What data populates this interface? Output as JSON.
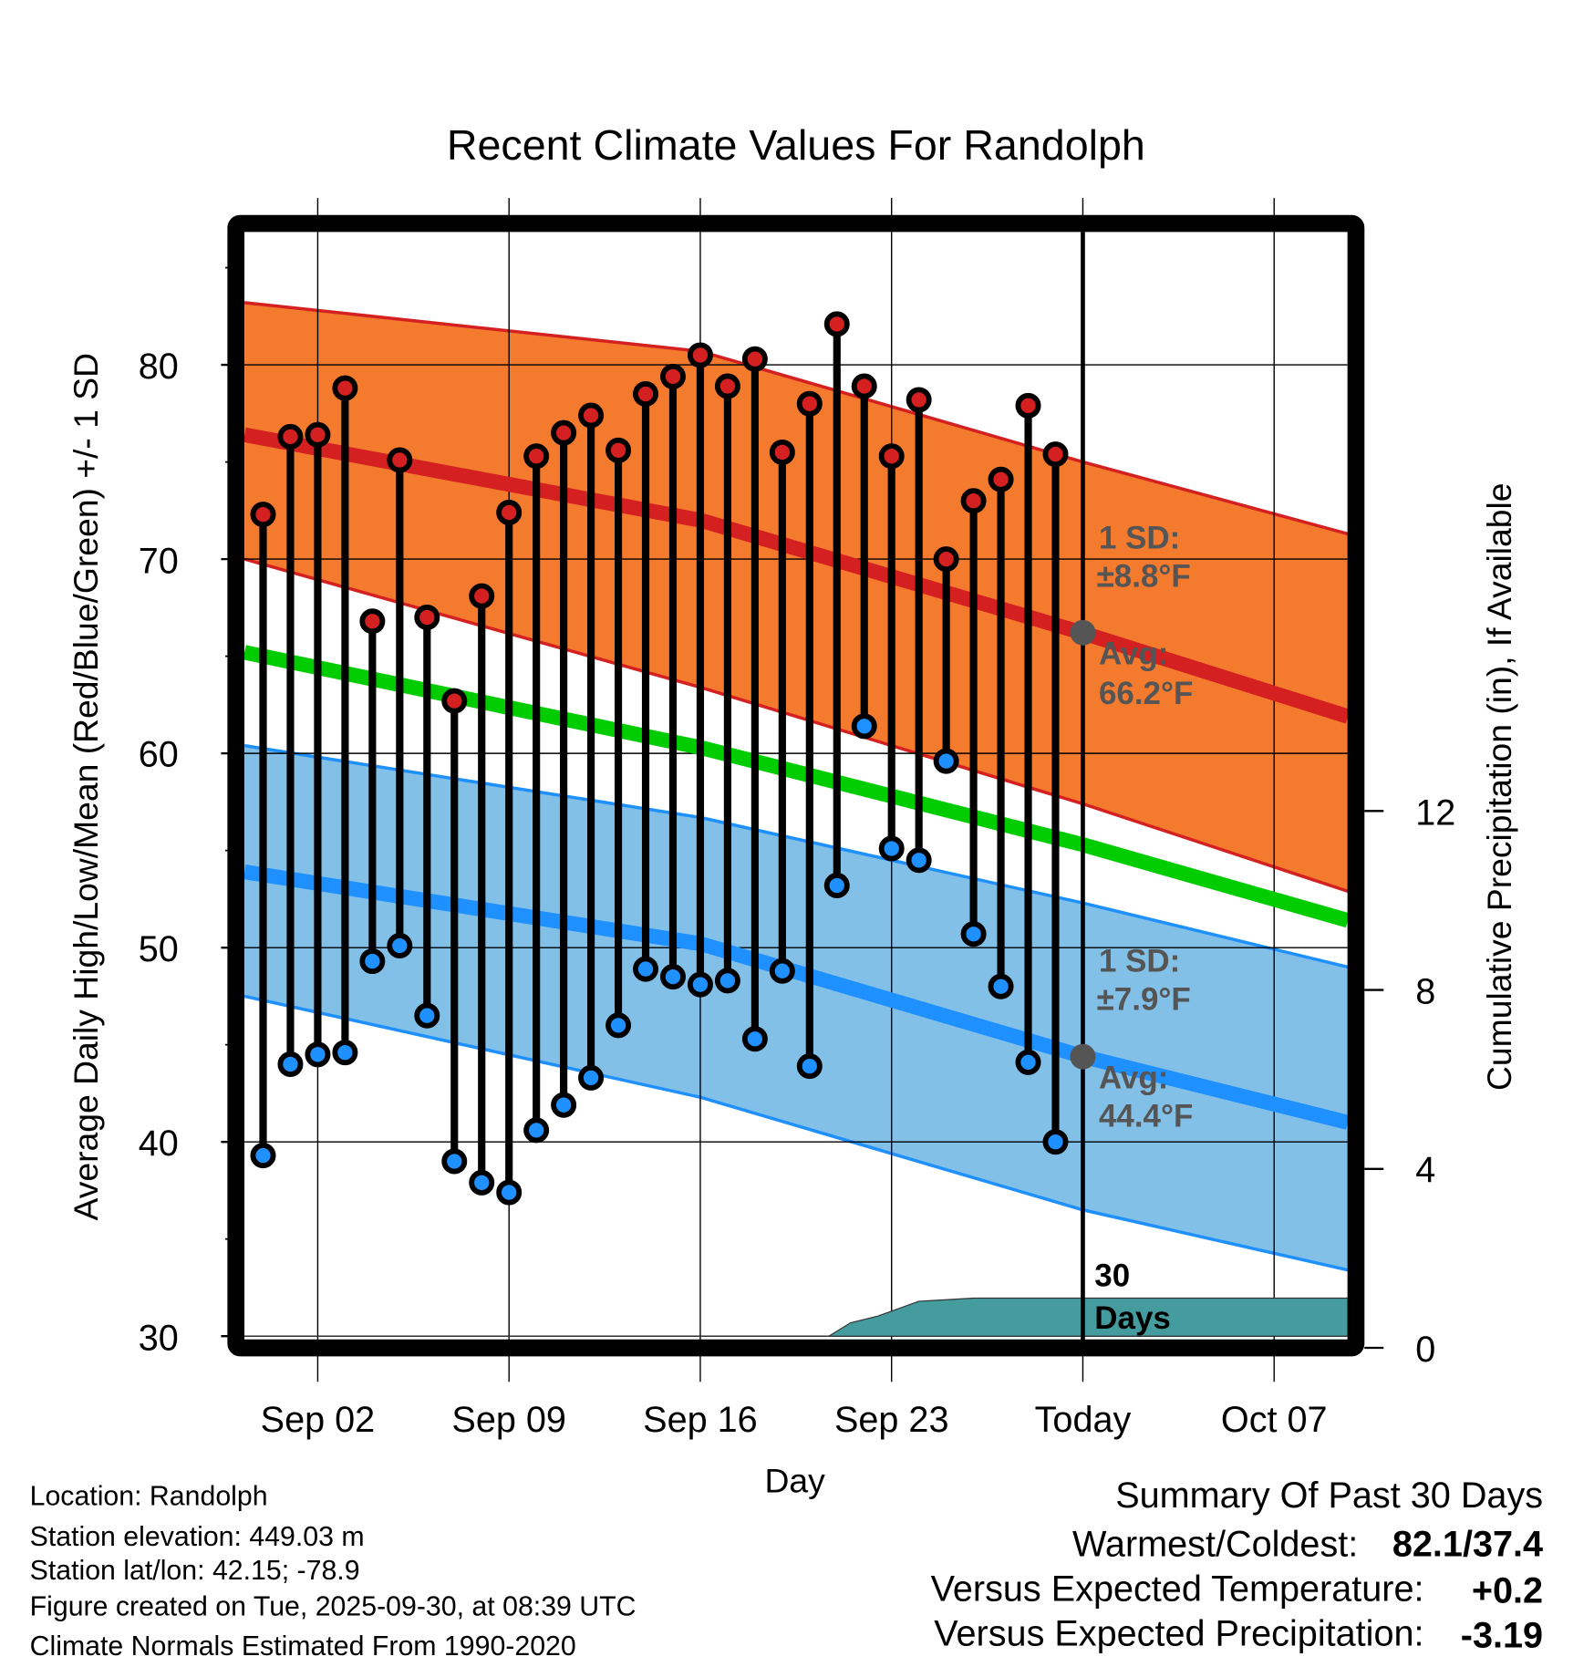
{
  "chart_data": {
    "type": "line",
    "title": "Recent Climate Values For Randolph",
    "xlabel": "Day",
    "ylabel": "Average Daily High/Low/Mean (Red/Blue/Green) +/- 1 SD",
    "y2label": "Cumulative Precipitation (in), If Available",
    "ylim": [
      30,
      87
    ],
    "y2lim": [
      0,
      12
    ],
    "yticks": [
      "30",
      "40",
      "50",
      "60",
      "70",
      "80"
    ],
    "y2ticks": [
      "0",
      "4",
      "8",
      "12"
    ],
    "xticks": [
      "Sep 02",
      "Sep 09",
      "Sep 16",
      "Sep 23",
      "Today",
      "Oct 07"
    ],
    "xtick_days": [
      1,
      8,
      15,
      22,
      29,
      36
    ],
    "grid": true,
    "day_origin": "Sep 01 = day 0",
    "observed_days": [
      -1,
      0,
      1,
      2,
      3,
      4,
      5,
      6,
      7,
      8,
      9,
      10,
      11,
      12,
      13,
      14,
      15,
      16,
      17,
      18,
      19,
      20,
      21,
      22,
      23,
      24,
      25,
      26,
      27,
      28
    ],
    "series": [
      {
        "name": "Daily High",
        "color": "#d42020",
        "values": [
          72.3,
          76.3,
          76.4,
          78.8,
          66.8,
          75.1,
          67.0,
          62.7,
          68.1,
          72.4,
          75.3,
          76.5,
          77.4,
          75.6,
          78.5,
          79.4,
          80.5,
          78.9,
          80.3,
          75.5,
          78.0,
          82.1,
          78.9,
          75.3,
          78.2,
          70.0,
          73.0,
          74.1,
          77.9,
          75.4
        ]
      },
      {
        "name": "Daily Low",
        "color": "#1e90ff",
        "values": [
          39.3,
          44.0,
          44.5,
          44.6,
          49.3,
          50.1,
          46.5,
          39.0,
          37.9,
          37.4,
          40.6,
          41.9,
          43.3,
          46.0,
          48.9,
          48.5,
          48.1,
          48.3,
          45.3,
          48.8,
          43.9,
          53.2,
          61.4,
          55.1,
          54.5,
          59.6,
          50.7,
          48.0,
          44.1,
          40.0
        ]
      }
    ],
    "normals": {
      "days": [
        -1.68,
        15,
        29,
        38.7
      ],
      "high_avg": [
        76.4,
        72.0,
        66.2,
        61.9
      ],
      "high_upper": [
        83.2,
        80.7,
        75.0,
        71.3
      ],
      "high_lower": [
        70.0,
        63.4,
        57.4,
        52.9
      ],
      "mean": [
        65.2,
        60.3,
        55.3,
        51.4
      ],
      "low_avg": [
        53.9,
        50.2,
        44.4,
        41.0
      ],
      "low_upper": [
        60.4,
        56.7,
        52.3,
        49.0
      ],
      "low_lower": [
        47.5,
        42.3,
        36.5,
        33.4
      ]
    },
    "precip": {
      "days": [
        -1.68,
        19.7,
        20.5,
        21.5,
        23,
        25,
        38.7
      ],
      "values": [
        0,
        0,
        0.3,
        0.45,
        0.78,
        0.85,
        0.85
      ],
      "color": "#459c9f"
    },
    "annotations": {
      "high_sd_label": "1 SD:",
      "high_sd_value": "±8.8°F",
      "high_avg_label": "Avg:",
      "high_avg_value": "66.2°F",
      "low_sd_label": "1 SD:",
      "low_sd_value": "±7.9°F",
      "low_avg_label": "Avg:",
      "low_avg_value": "44.4°F",
      "window_label_1": "30",
      "window_label_2": "Days"
    }
  },
  "footer": {
    "location": "Location: Randolph",
    "elevation": "Station elevation: 449.03 m",
    "latlon": "Station lat/lon: 42.15; -78.9",
    "created": "Figure created on Tue, 2025-09-30, at 08:39 UTC",
    "normals": "Climate Normals Estimated From 1990-2020"
  },
  "summary": {
    "title": "Summary Of Past 30 Days",
    "warmest_label": "Warmest/Coldest:",
    "warmest_value": "82.1/37.4",
    "temp_label": "Versus Expected Temperature:",
    "temp_value": "+0.2",
    "temp_color": "#d42020",
    "precip_label": "Versus Expected Precipitation:",
    "precip_value": "-3.19",
    "precip_color": "#a0522d"
  }
}
